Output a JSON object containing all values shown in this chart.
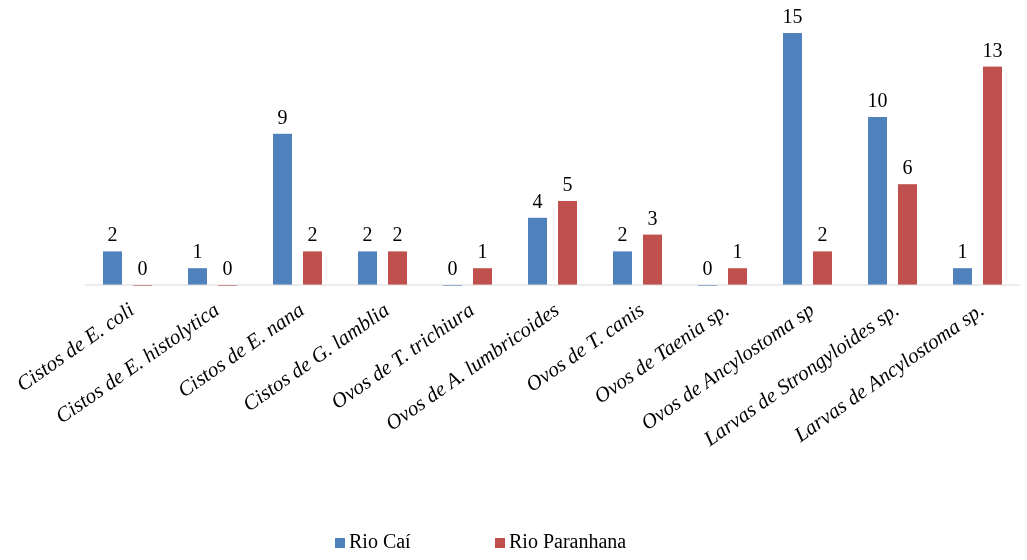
{
  "chart_data": {
    "type": "bar",
    "categories": [
      "Cistos de E. coli",
      "Cistos de E. histolytica",
      "Cistos de E. nana",
      "Cistos de G. lamblia",
      "Ovos de T. trichiura",
      "Ovos de A. lumbricoides",
      "Ovos de T. canis",
      "Ovos de Taenia sp.",
      "Ovos de Ancylostoma sp",
      "Larvas de Strongyloides sp.",
      "Larvas de Ancylostoma sp."
    ],
    "series": [
      {
        "name": "Rio Caí",
        "color": "#4f81bd",
        "values": [
          2,
          1,
          9,
          2,
          0,
          4,
          2,
          0,
          15,
          10,
          1
        ]
      },
      {
        "name": "Rio Paranhana",
        "color": "#c0504d",
        "values": [
          0,
          0,
          2,
          2,
          1,
          5,
          3,
          1,
          2,
          6,
          13
        ]
      }
    ],
    "data_labels": true,
    "legend": "bottom"
  }
}
